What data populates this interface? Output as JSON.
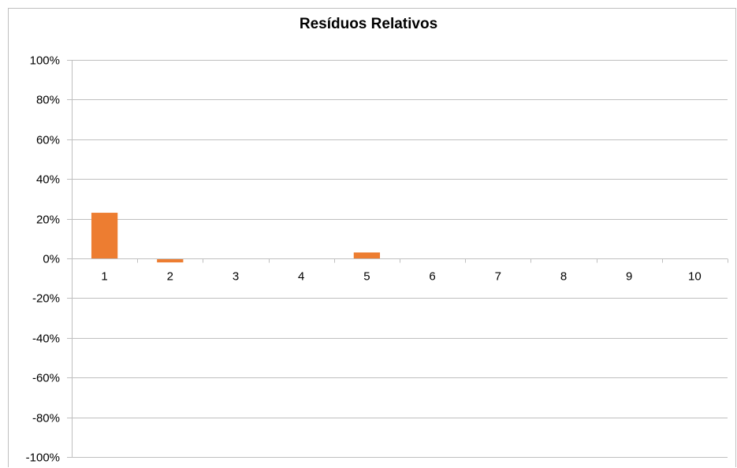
{
  "chart_data": {
    "type": "bar",
    "title": "Resíduos Relativos",
    "xlabel": "",
    "ylabel": "",
    "categories": [
      "1",
      "2",
      "3",
      "4",
      "5",
      "6",
      "7",
      "8",
      "9",
      "10"
    ],
    "values": [
      0.23,
      -0.02,
      0,
      0,
      0.03,
      0,
      0,
      0,
      0,
      0
    ],
    "ylim": [
      -1,
      1
    ],
    "yticks": [
      1,
      0.8,
      0.6,
      0.4,
      0.2,
      0,
      -0.2,
      -0.4,
      -0.6,
      -0.8,
      -1
    ],
    "ytick_labels": [
      "100%",
      "80%",
      "60%",
      "40%",
      "20%",
      "0%",
      "-20%",
      "-40%",
      "-60%",
      "-80%",
      "-100%"
    ],
    "grid": true,
    "legend": "none",
    "colors": {
      "bar": "#ED7D31",
      "gridline": "#BFBFBF",
      "axis": "#BFBFBF",
      "text": "#000000"
    }
  }
}
